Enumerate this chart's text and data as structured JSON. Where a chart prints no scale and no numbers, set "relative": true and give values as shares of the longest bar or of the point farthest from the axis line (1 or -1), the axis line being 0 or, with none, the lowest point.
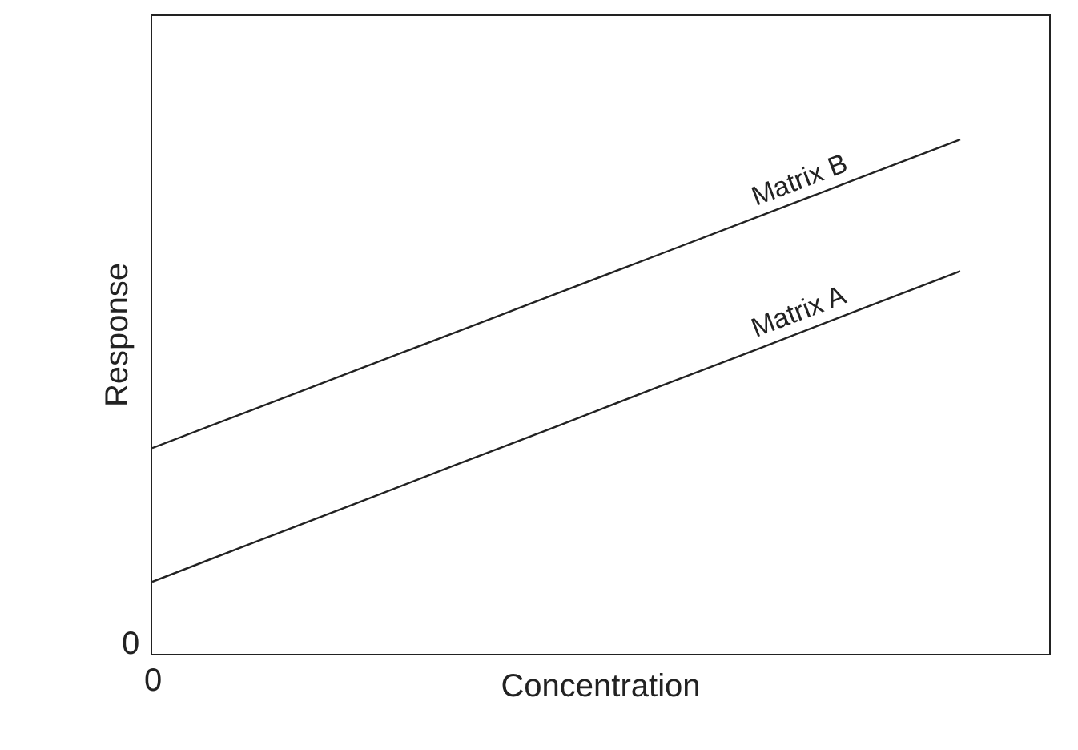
{
  "chart_data": {
    "type": "line",
    "relative": true,
    "xlabel": "Concentration",
    "ylabel": "Response",
    "categories": [
      null,
      null,
      null,
      null,
      null,
      null,
      null,
      null,
      null,
      null
    ],
    "annotations": [
      "0",
      "0"
    ],
    "legend": false,
    "marker": "none",
    "line_style": "solid",
    "series": [
      {
        "name": "Matrix B",
        "color": "#222222",
        "values": [
          0.4,
          0.475,
          0.55,
          0.625,
          0.7,
          0.775,
          0.85,
          0.925,
          1.0,
          null
        ]
      },
      {
        "name": "Matrix A",
        "color": "#222222",
        "values": [
          0.14,
          0.216,
          0.291,
          0.367,
          0.442,
          0.518,
          0.593,
          0.669,
          0.744,
          null
        ]
      }
    ]
  }
}
